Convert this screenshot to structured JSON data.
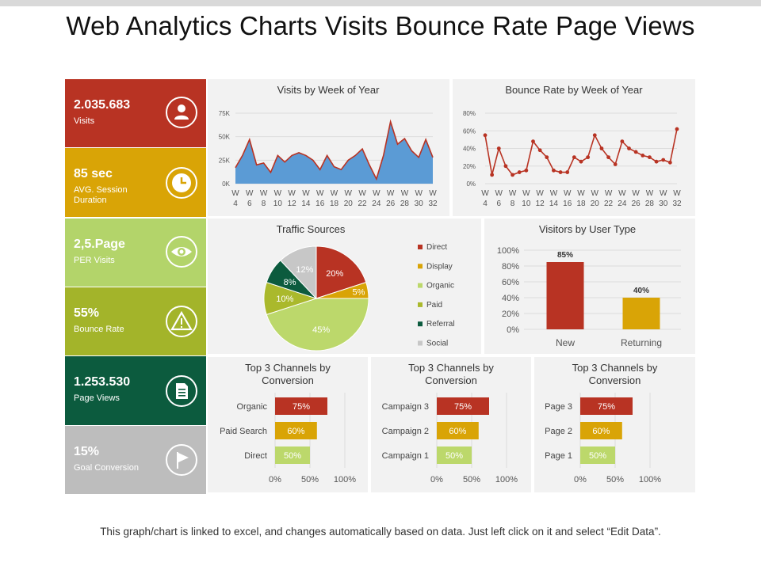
{
  "title": "Web Analytics Charts Visits Bounce Rate Page Views",
  "footer": "This graph/chart is linked to excel, and changes automatically based on data. Just left click on it and select “Edit Data”.",
  "kpis": [
    {
      "value": "2.035.683",
      "label": "Visits",
      "color": "#b83323",
      "icon": "user-icon"
    },
    {
      "value": "85 sec",
      "label": "AVG.  Session Duration",
      "color": "#d9a406",
      "icon": "clock-icon"
    },
    {
      "value": "2,5.Page",
      "label": "PER Visits",
      "color": "#b3d46a",
      "icon": "eye-icon"
    },
    {
      "value": "55%",
      "label": "Bounce Rate",
      "color": "#a3b42a",
      "icon": "warning-icon"
    },
    {
      "value": "1.253.530",
      "label": "Page Views",
      "color": "#0c5b3e",
      "icon": "document-icon"
    },
    {
      "value": "15%",
      "label": "Goal Conversion",
      "color": "#bdbdbd",
      "icon": "flag-icon"
    }
  ],
  "chart_data": [
    {
      "id": "visits",
      "type": "area",
      "title": "Visits by Week of Year",
      "x": [
        4,
        5,
        6,
        7,
        8,
        9,
        10,
        11,
        12,
        13,
        14,
        15,
        16,
        17,
        18,
        19,
        20,
        21,
        22,
        23,
        24,
        25,
        26,
        27,
        28,
        29,
        30,
        31,
        32
      ],
      "x_tick_labels": [
        "W 4",
        "W 6",
        "W 8",
        "W 10",
        "W 12",
        "W 14",
        "W 16",
        "W 18",
        "W 20",
        "W 22",
        "W 24",
        "W 26",
        "W 28",
        "W 30",
        "W 32"
      ],
      "values": [
        17000,
        30000,
        47000,
        20000,
        22000,
        12000,
        30000,
        23000,
        30000,
        33000,
        30000,
        25000,
        15000,
        30000,
        18000,
        15000,
        25000,
        30000,
        37000,
        20000,
        5000,
        30000,
        66000,
        42000,
        48000,
        35000,
        28000,
        47000,
        28000
      ],
      "ylim": [
        0,
        75000
      ],
      "y_tick_labels": [
        "0K",
        "25K",
        "50K",
        "75K"
      ],
      "color": "#5b9bd5",
      "line_color": "#b83323"
    },
    {
      "id": "bounce",
      "type": "line",
      "title": "Bounce Rate by Week of Year",
      "x": [
        4,
        5,
        6,
        7,
        8,
        9,
        10,
        11,
        12,
        13,
        14,
        15,
        16,
        17,
        18,
        19,
        20,
        21,
        22,
        23,
        24,
        25,
        26,
        27,
        28,
        29,
        30,
        31,
        32
      ],
      "x_tick_labels": [
        "W 4",
        "W 6",
        "W 8",
        "W 10",
        "W 12",
        "W 14",
        "W 16",
        "W 18",
        "W 20",
        "W 22",
        "W 24",
        "W 26",
        "W 28",
        "W 30",
        "W 32"
      ],
      "values": [
        55,
        10,
        40,
        20,
        10,
        13,
        15,
        48,
        38,
        30,
        15,
        13,
        13,
        30,
        25,
        30,
        55,
        40,
        30,
        22,
        48,
        40,
        36,
        32,
        30,
        25,
        27,
        24,
        62
      ],
      "ylim": [
        0,
        80
      ],
      "y_tick_labels": [
        "0%",
        "20%",
        "40%",
        "60%",
        "80%"
      ],
      "color": "#b83323"
    },
    {
      "id": "traffic",
      "type": "pie",
      "title": "Traffic Sources",
      "slices": [
        {
          "label": "Direct",
          "value": 20,
          "text": "20%",
          "color": "#b83323"
        },
        {
          "label": "Display",
          "value": 5,
          "text": "5%",
          "color": "#d9a406"
        },
        {
          "label": "Organic",
          "value": 45,
          "text": "45%",
          "color": "#bcd86b"
        },
        {
          "label": "Paid",
          "value": 10,
          "text": "10%",
          "color": "#aab92c"
        },
        {
          "label": "Referral",
          "value": 8,
          "text": "8%",
          "color": "#0c5b3e"
        },
        {
          "label": "Social",
          "value": 12,
          "text": "12%",
          "color": "#c7c7c7"
        }
      ]
    },
    {
      "id": "usertype",
      "type": "bar",
      "title": "Visitors by User Type",
      "categories": [
        "New",
        "Returning"
      ],
      "values": [
        85,
        40
      ],
      "value_labels": [
        "85%",
        "40%"
      ],
      "colors": [
        "#b83323",
        "#d9a406"
      ],
      "ylim": [
        0,
        100
      ],
      "y_tick_labels": [
        "0%",
        "20%",
        "40%",
        "60%",
        "80%",
        "100%"
      ]
    },
    {
      "id": "conv1",
      "type": "bar",
      "title": "Top 3 Channels by Conversion",
      "categories": [
        "Organic",
        "Paid Search",
        "Direct"
      ],
      "values": [
        75,
        60,
        50
      ],
      "value_labels": [
        "75%",
        "60%",
        "50%"
      ],
      "colors": [
        "#b83323",
        "#d9a406",
        "#bcd86b"
      ],
      "xlim": [
        0,
        100
      ],
      "x_tick_labels": [
        "0%",
        "50%",
        "100%"
      ]
    },
    {
      "id": "conv2",
      "type": "bar",
      "title": "Top 3 Channels by Conversion",
      "categories": [
        "Campaign 3",
        "Campaign 2",
        "Campaign 1"
      ],
      "values": [
        75,
        60,
        50
      ],
      "value_labels": [
        "75%",
        "60%",
        "50%"
      ],
      "colors": [
        "#b83323",
        "#d9a406",
        "#bcd86b"
      ],
      "xlim": [
        0,
        100
      ],
      "x_tick_labels": [
        "0%",
        "50%",
        "100%"
      ]
    },
    {
      "id": "conv3",
      "type": "bar",
      "title": "Top 3 Channels by Conversion",
      "categories": [
        "Page 3",
        "Page 2",
        "Page 1"
      ],
      "values": [
        75,
        60,
        50
      ],
      "value_labels": [
        "75%",
        "60%",
        "50%"
      ],
      "colors": [
        "#b83323",
        "#d9a406",
        "#bcd86b"
      ],
      "xlim": [
        0,
        100
      ],
      "x_tick_labels": [
        "0%",
        "50%",
        "100%"
      ]
    }
  ]
}
